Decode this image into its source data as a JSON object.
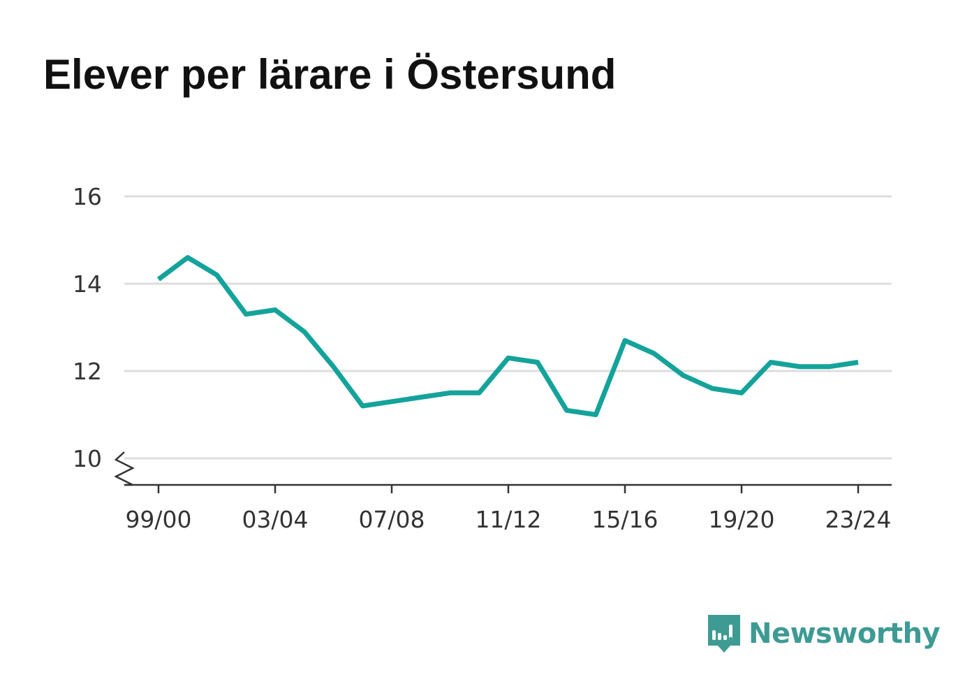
{
  "title": "Elever per lärare i Östersund",
  "brand": {
    "name": "Newsworthy",
    "icon": "newsworthy-logo-icon"
  },
  "colors": {
    "line": "#14a39a",
    "grid": "#dddddd",
    "axis": "#333333",
    "text": "#333333",
    "brand": "#3d9b93"
  },
  "chart_data": {
    "type": "line",
    "title": "Elever per lärare i Östersund",
    "xlabel": "",
    "ylabel": "",
    "ylim": [
      10,
      16
    ],
    "y_axis_break": true,
    "yticks": [
      10,
      12,
      14,
      16
    ],
    "x": [
      "99/00",
      "00/01",
      "01/02",
      "02/03",
      "03/04",
      "04/05",
      "05/06",
      "06/07",
      "07/08",
      "08/09",
      "09/10",
      "10/11",
      "11/12",
      "12/13",
      "13/14",
      "14/15",
      "15/16",
      "16/17",
      "17/18",
      "18/19",
      "19/20",
      "20/21",
      "21/22",
      "22/23",
      "23/24"
    ],
    "xticks": [
      "99/00",
      "03/04",
      "07/08",
      "11/12",
      "15/16",
      "19/20",
      "23/24"
    ],
    "series": [
      {
        "values": [
          14.1,
          14.6,
          14.2,
          13.3,
          13.4,
          12.9,
          12.1,
          11.2,
          11.3,
          11.4,
          11.5,
          11.5,
          12.3,
          12.2,
          11.1,
          11.0,
          12.7,
          12.4,
          11.9,
          11.6,
          11.5,
          12.2,
          12.1,
          12.1,
          12.2
        ]
      }
    ],
    "grid": true,
    "legend": "none"
  }
}
